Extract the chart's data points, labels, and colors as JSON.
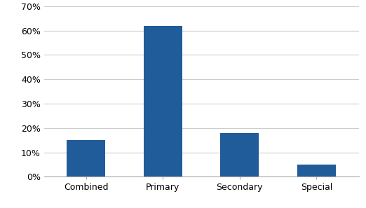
{
  "categories": [
    "Combined",
    "Primary",
    "Secondary",
    "Special"
  ],
  "values": [
    0.15,
    0.62,
    0.18,
    0.05
  ],
  "bar_color": "#1F5C99",
  "ylim": [
    0,
    0.7
  ],
  "yticks": [
    0.0,
    0.1,
    0.2,
    0.3,
    0.4,
    0.5,
    0.6,
    0.7
  ],
  "background_color": "#ffffff",
  "grid_color": "#cccccc",
  "tick_fontsize": 9,
  "bar_width": 0.5,
  "figsize": [
    5.22,
    2.97
  ],
  "dpi": 100
}
